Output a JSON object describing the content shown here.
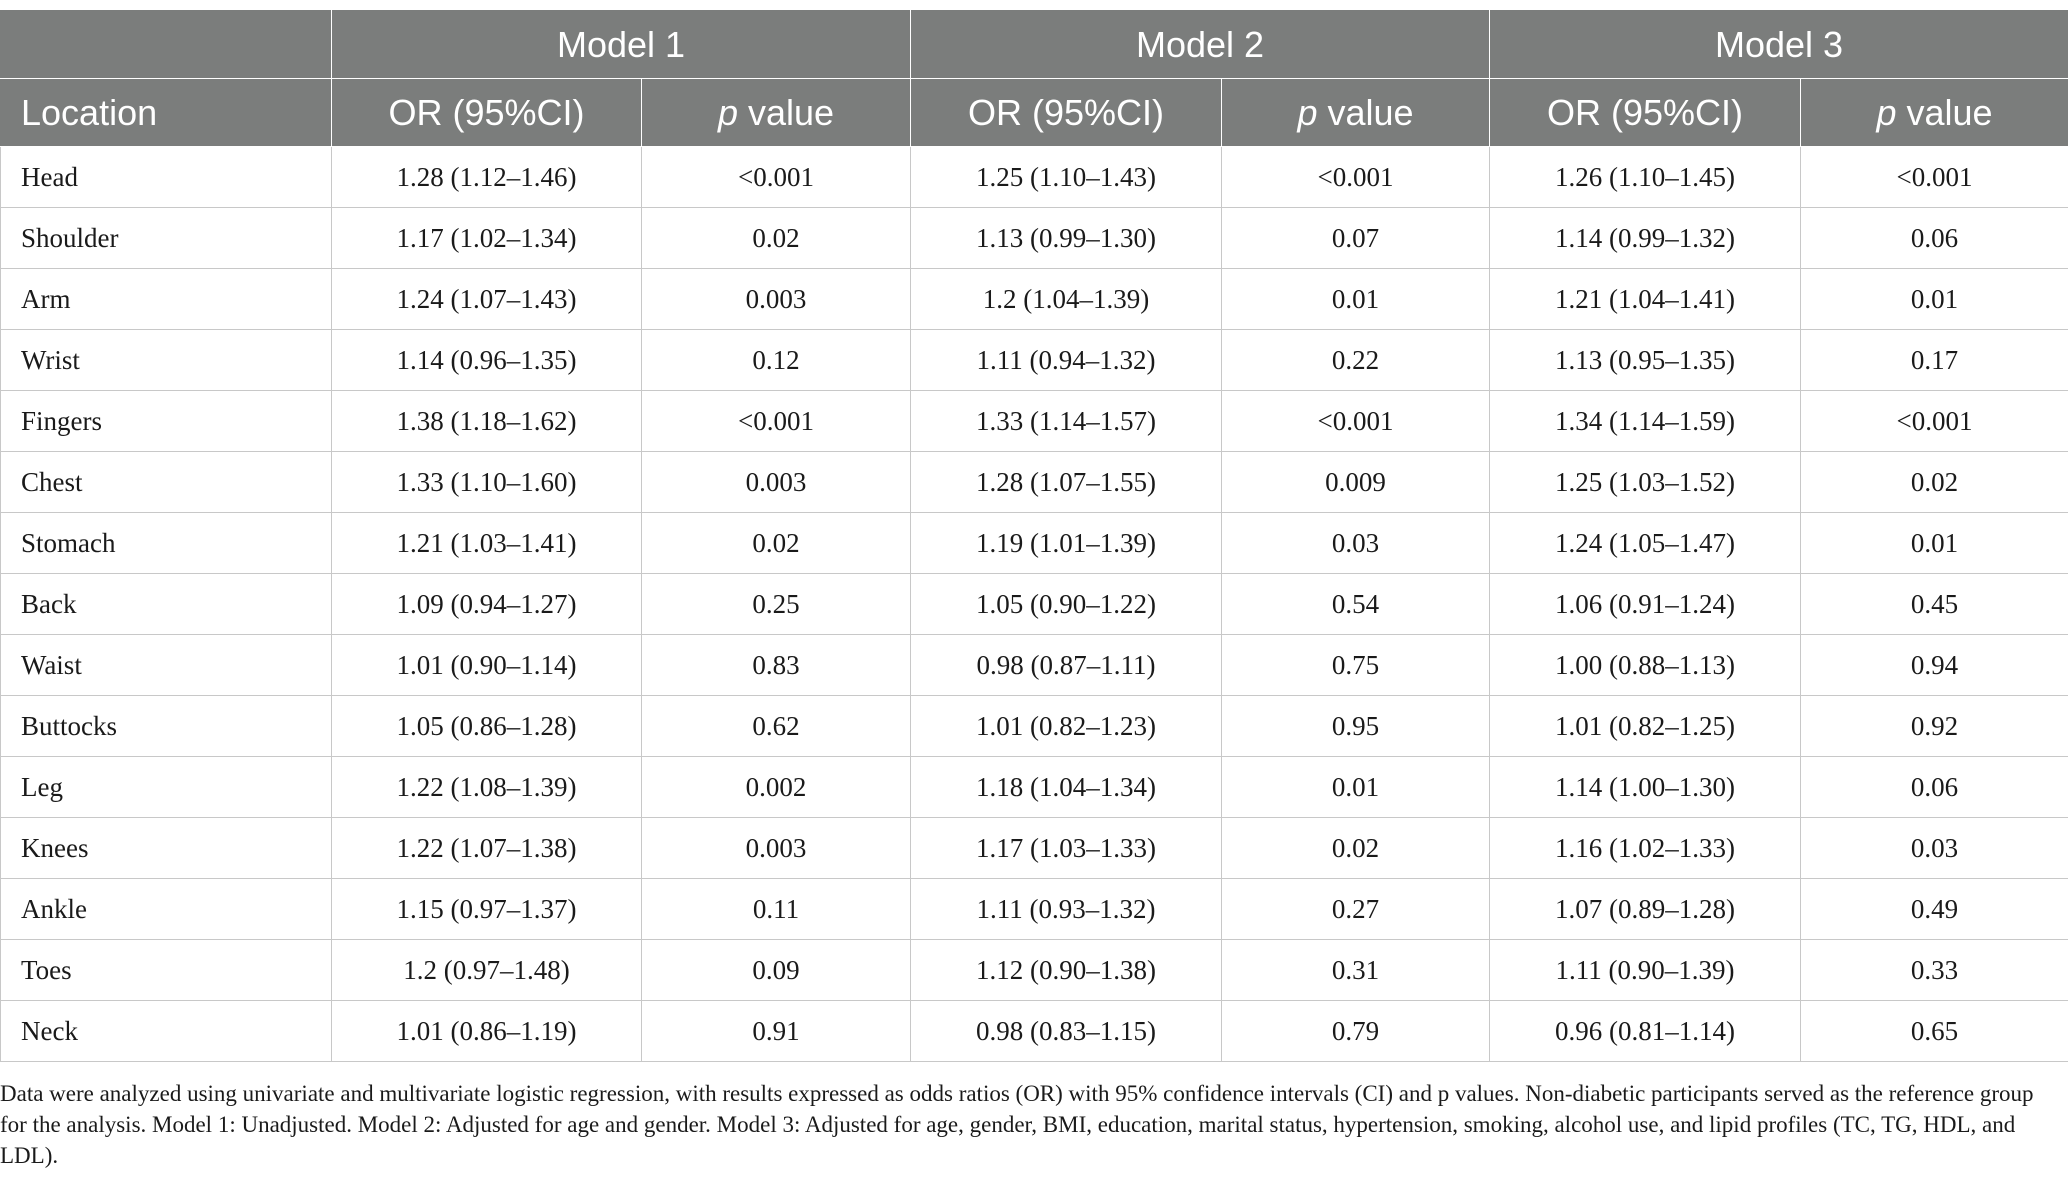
{
  "header": {
    "models": [
      "Model 1",
      "Model 2",
      "Model 3"
    ],
    "location_label": "Location",
    "or_label": "OR (95%CI)",
    "p_italic": "p",
    "p_rest": " value"
  },
  "rows": [
    {
      "location": "Head",
      "or1": "1.28 (1.12–1.46)",
      "p1": "<0.001",
      "or2": "1.25 (1.10–1.43)",
      "p2": "<0.001",
      "or3": "1.26 (1.10–1.45)",
      "p3": "<0.001"
    },
    {
      "location": "Shoulder",
      "or1": "1.17 (1.02–1.34)",
      "p1": "0.02",
      "or2": "1.13 (0.99–1.30)",
      "p2": "0.07",
      "or3": "1.14 (0.99–1.32)",
      "p3": "0.06"
    },
    {
      "location": "Arm",
      "or1": "1.24 (1.07–1.43)",
      "p1": "0.003",
      "or2": "1.2 (1.04–1.39)",
      "p2": "0.01",
      "or3": "1.21 (1.04–1.41)",
      "p3": "0.01"
    },
    {
      "location": "Wrist",
      "or1": "1.14 (0.96–1.35)",
      "p1": "0.12",
      "or2": "1.11 (0.94–1.32)",
      "p2": "0.22",
      "or3": "1.13 (0.95–1.35)",
      "p3": "0.17"
    },
    {
      "location": "Fingers",
      "or1": "1.38 (1.18–1.62)",
      "p1": "<0.001",
      "or2": "1.33 (1.14–1.57)",
      "p2": "<0.001",
      "or3": "1.34 (1.14–1.59)",
      "p3": "<0.001"
    },
    {
      "location": "Chest",
      "or1": "1.33 (1.10–1.60)",
      "p1": "0.003",
      "or2": "1.28 (1.07–1.55)",
      "p2": "0.009",
      "or3": "1.25 (1.03–1.52)",
      "p3": "0.02"
    },
    {
      "location": "Stomach",
      "or1": "1.21 (1.03–1.41)",
      "p1": "0.02",
      "or2": "1.19 (1.01–1.39)",
      "p2": "0.03",
      "or3": "1.24 (1.05–1.47)",
      "p3": "0.01"
    },
    {
      "location": "Back",
      "or1": "1.09 (0.94–1.27)",
      "p1": "0.25",
      "or2": "1.05 (0.90–1.22)",
      "p2": "0.54",
      "or3": "1.06 (0.91–1.24)",
      "p3": "0.45"
    },
    {
      "location": "Waist",
      "or1": "1.01 (0.90–1.14)",
      "p1": "0.83",
      "or2": "0.98 (0.87–1.11)",
      "p2": "0.75",
      "or3": "1.00 (0.88–1.13)",
      "p3": "0.94"
    },
    {
      "location": "Buttocks",
      "or1": "1.05 (0.86–1.28)",
      "p1": "0.62",
      "or2": "1.01 (0.82–1.23)",
      "p2": "0.95",
      "or3": "1.01 (0.82–1.25)",
      "p3": "0.92"
    },
    {
      "location": "Leg",
      "or1": "1.22 (1.08–1.39)",
      "p1": "0.002",
      "or2": "1.18 (1.04–1.34)",
      "p2": "0.01",
      "or3": "1.14 (1.00–1.30)",
      "p3": "0.06"
    },
    {
      "location": "Knees",
      "or1": "1.22 (1.07–1.38)",
      "p1": "0.003",
      "or2": "1.17 (1.03–1.33)",
      "p2": "0.02",
      "or3": "1.16 (1.02–1.33)",
      "p3": "0.03"
    },
    {
      "location": "Ankle",
      "or1": "1.15 (0.97–1.37)",
      "p1": "0.11",
      "or2": "1.11 (0.93–1.32)",
      "p2": "0.27",
      "or3": "1.07 (0.89–1.28)",
      "p3": "0.49"
    },
    {
      "location": "Toes",
      "or1": "1.2 (0.97–1.48)",
      "p1": "0.09",
      "or2": "1.12 (0.90–1.38)",
      "p2": "0.31",
      "or3": "1.11 (0.90–1.39)",
      "p3": "0.33"
    },
    {
      "location": "Neck",
      "or1": "1.01 (0.86–1.19)",
      "p1": "0.91",
      "or2": "0.98 (0.83–1.15)",
      "p2": "0.79",
      "or3": "0.96 (0.81–1.14)",
      "p3": "0.65"
    }
  ],
  "footnote": "Data were analyzed using univariate and multivariate logistic regression, with results expressed as odds ratios (OR) with 95% confidence intervals (CI) and p values. Non-diabetic participants served as the reference group for the analysis. Model 1: Unadjusted. Model 2: Adjusted for age and gender. Model 3: Adjusted for age, gender, BMI, education, marital status, hypertension, smoking, alcohol use, and lipid profiles (TC, TG, HDL, and LDL).",
  "colors": {
    "header_bg": "#7b7d7c",
    "header_text": "#ffffff",
    "grid_line": "#c8c8c8",
    "body_text": "#1a1a1a"
  }
}
